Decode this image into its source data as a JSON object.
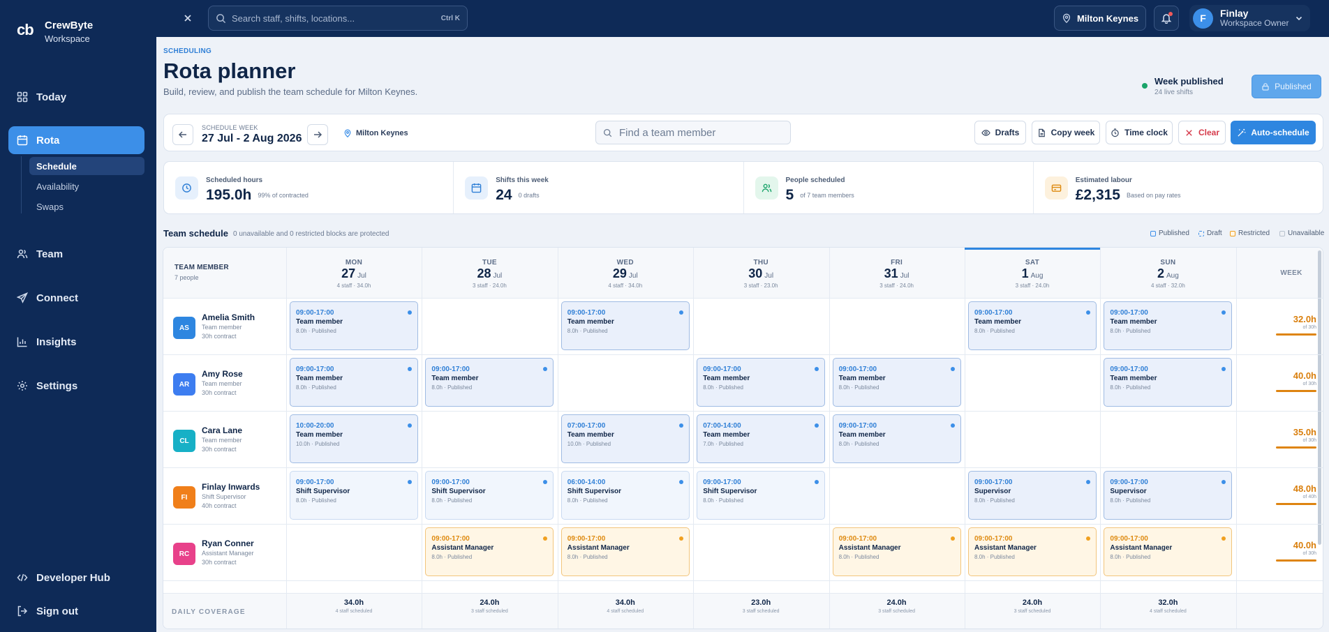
{
  "app": {
    "logo": "cb",
    "name": "CrewByte",
    "subtitle": "Workspace"
  },
  "sidebar": {
    "items": [
      {
        "label": "Today",
        "icon": "grid-icon"
      },
      {
        "label": "Rota",
        "icon": "calendar-icon"
      },
      {
        "label": "Team",
        "icon": "users-icon"
      },
      {
        "label": "Connect",
        "icon": "send-icon"
      },
      {
        "label": "Insights",
        "icon": "chart-icon"
      },
      {
        "label": "Settings",
        "icon": "gear-icon"
      }
    ],
    "sub_items": [
      "Schedule",
      "Availability",
      "Swaps"
    ],
    "footer": [
      {
        "label": "Developer Hub",
        "icon": "code-icon"
      },
      {
        "label": "Sign out",
        "icon": "logout-icon"
      }
    ]
  },
  "topbar": {
    "search_placeholder": "Search staff, shifts, locations...",
    "shortcut": "Ctrl K",
    "location": "Milton Keynes",
    "user": {
      "initial": "F",
      "name": "Finlay",
      "role": "Workspace Owner"
    }
  },
  "page": {
    "eyebrow": "SCHEDULING",
    "title": "Rota planner",
    "subtitle": "Build, review, and publish the team schedule for Milton Keynes.",
    "status_title": "Week published",
    "status_sub": "24 live shifts",
    "published_button": "Published"
  },
  "toolbar": {
    "week_label": "SCHEDULE WEEK",
    "week_range": "27 Jul - 2 Aug 2026",
    "location": "Milton Keynes",
    "search_placeholder": "Find a team member",
    "drafts": "Drafts",
    "copy_week": "Copy week",
    "time_clock": "Time clock",
    "clear": "Clear",
    "auto_schedule": "Auto-schedule"
  },
  "stats": [
    {
      "label": "Scheduled hours",
      "value": "195.0h",
      "note": "99% of contracted"
    },
    {
      "label": "Shifts this week",
      "value": "24",
      "note": "0 drafts"
    },
    {
      "label": "People scheduled",
      "value": "5",
      "note": "of 7 team members"
    },
    {
      "label": "Estimated labour",
      "value": "£2,315",
      "note": "Based on pay rates"
    }
  ],
  "schedule": {
    "title": "Team schedule",
    "note": "0 unavailable and 0 restricted blocks are protected",
    "legend": [
      "Published",
      "Draft",
      "Restricted",
      "Unavailable"
    ],
    "team_header": "TEAM MEMBER",
    "team_count": "7 people",
    "week_header": "WEEK",
    "coverage_label": "DAILY COVERAGE",
    "days": [
      {
        "name": "MON",
        "date": "27",
        "month": "Jul",
        "summary": "4 staff · 34.0h",
        "coverage": "34.0h",
        "coverage_sub": "4 staff scheduled"
      },
      {
        "name": "TUE",
        "date": "28",
        "month": "Jul",
        "summary": "3 staff · 24.0h",
        "coverage": "24.0h",
        "coverage_sub": "3 staff scheduled"
      },
      {
        "name": "WED",
        "date": "29",
        "month": "Jul",
        "summary": "4 staff · 34.0h",
        "coverage": "34.0h",
        "coverage_sub": "4 staff scheduled"
      },
      {
        "name": "THU",
        "date": "30",
        "month": "Jul",
        "summary": "3 staff · 23.0h",
        "coverage": "23.0h",
        "coverage_sub": "3 staff scheduled"
      },
      {
        "name": "FRI",
        "date": "31",
        "month": "Jul",
        "summary": "3 staff · 24.0h",
        "coverage": "24.0h",
        "coverage_sub": "3 staff scheduled"
      },
      {
        "name": "SAT",
        "date": "1",
        "month": "Aug",
        "summary": "3 staff · 24.0h",
        "coverage": "24.0h",
        "coverage_sub": "3 staff scheduled"
      },
      {
        "name": "SUN",
        "date": "2",
        "month": "Aug",
        "summary": "4 staff · 32.0h",
        "coverage": "32.0h",
        "coverage_sub": "4 staff scheduled"
      }
    ],
    "members": [
      {
        "initials": "AS",
        "name": "Amelia Smith",
        "role": "Team member",
        "contract": "30h contract",
        "avatar_color": "#2e86e0",
        "week": "32.0h",
        "week_of": "of 30h",
        "shifts": [
          {
            "day": 0,
            "time": "09:00-17:00",
            "role": "Team member",
            "meta": "8.0h · Published",
            "style": "blue"
          },
          {
            "day": 2,
            "time": "09:00-17:00",
            "role": "Team member",
            "meta": "8.0h · Published",
            "style": "blue"
          },
          {
            "day": 5,
            "time": "09:00-17:00",
            "role": "Team member",
            "meta": "8.0h · Published",
            "style": "blue"
          },
          {
            "day": 6,
            "time": "09:00-17:00",
            "role": "Team member",
            "meta": "8.0h · Published",
            "style": "blue"
          }
        ]
      },
      {
        "initials": "AR",
        "name": "Amy Rose",
        "role": "Team member",
        "contract": "30h contract",
        "avatar_color": "#3d7df0",
        "week": "40.0h",
        "week_of": "of 30h",
        "shifts": [
          {
            "day": 0,
            "time": "09:00-17:00",
            "role": "Team member",
            "meta": "8.0h · Published",
            "style": "blue"
          },
          {
            "day": 1,
            "time": "09:00-17:00",
            "role": "Team member",
            "meta": "8.0h · Published",
            "style": "blue"
          },
          {
            "day": 3,
            "time": "09:00-17:00",
            "role": "Team member",
            "meta": "8.0h · Published",
            "style": "blue"
          },
          {
            "day": 4,
            "time": "09:00-17:00",
            "role": "Team member",
            "meta": "8.0h · Published",
            "style": "blue"
          },
          {
            "day": 6,
            "time": "09:00-17:00",
            "role": "Team member",
            "meta": "8.0h · Published",
            "style": "blue"
          }
        ]
      },
      {
        "initials": "CL",
        "name": "Cara Lane",
        "role": "Team member",
        "contract": "30h contract",
        "avatar_color": "#17b0c6",
        "week": "35.0h",
        "week_of": "of 30h",
        "shifts": [
          {
            "day": 0,
            "time": "10:00-20:00",
            "role": "Team member",
            "meta": "10.0h · Published",
            "style": "blue"
          },
          {
            "day": 2,
            "time": "07:00-17:00",
            "role": "Team member",
            "meta": "10.0h · Published",
            "style": "blue"
          },
          {
            "day": 3,
            "time": "07:00-14:00",
            "role": "Team member",
            "meta": "7.0h · Published",
            "style": "blue"
          },
          {
            "day": 4,
            "time": "09:00-17:00",
            "role": "Team member",
            "meta": "8.0h · Published",
            "style": "blue"
          }
        ]
      },
      {
        "initials": "FI",
        "name": "Finlay Inwards",
        "role": "Shift Supervisor",
        "contract": "40h contract",
        "avatar_color": "#f07f1a",
        "week": "48.0h",
        "week_of": "of 40h",
        "shifts": [
          {
            "day": 0,
            "time": "09:00-17:00",
            "role": "Shift Supervisor",
            "meta": "8.0h · Published",
            "style": "light"
          },
          {
            "day": 1,
            "time": "09:00-17:00",
            "role": "Shift Supervisor",
            "meta": "8.0h · Published",
            "style": "light"
          },
          {
            "day": 2,
            "time": "06:00-14:00",
            "role": "Shift Supervisor",
            "meta": "8.0h · Published",
            "style": "light"
          },
          {
            "day": 3,
            "time": "09:00-17:00",
            "role": "Shift Supervisor",
            "meta": "8.0h · Published",
            "style": "light"
          },
          {
            "day": 5,
            "time": "09:00-17:00",
            "role": "Supervisor",
            "meta": "8.0h · Published",
            "style": "blue"
          },
          {
            "day": 6,
            "time": "09:00-17:00",
            "role": "Supervisor",
            "meta": "8.0h · Published",
            "style": "blue"
          }
        ]
      },
      {
        "initials": "RC",
        "name": "Ryan Conner",
        "role": "Assistant Manager",
        "contract": "30h contract",
        "avatar_color": "#e8418a",
        "week": "40.0h",
        "week_of": "of 30h",
        "shifts": [
          {
            "day": 1,
            "time": "09:00-17:00",
            "role": "Assistant Manager",
            "meta": "8.0h · Published",
            "style": "orange"
          },
          {
            "day": 2,
            "time": "09:00-17:00",
            "role": "Assistant Manager",
            "meta": "8.0h · Published",
            "style": "orange"
          },
          {
            "day": 4,
            "time": "09:00-17:00",
            "role": "Assistant Manager",
            "meta": "8.0h · Published",
            "style": "orange"
          },
          {
            "day": 5,
            "time": "09:00-17:00",
            "role": "Assistant Manager",
            "meta": "8.0h · Published",
            "style": "orange"
          },
          {
            "day": 6,
            "time": "09:00-17:00",
            "role": "Assistant Manager",
            "meta": "8.0h · Published",
            "style": "orange"
          }
        ]
      }
    ]
  }
}
